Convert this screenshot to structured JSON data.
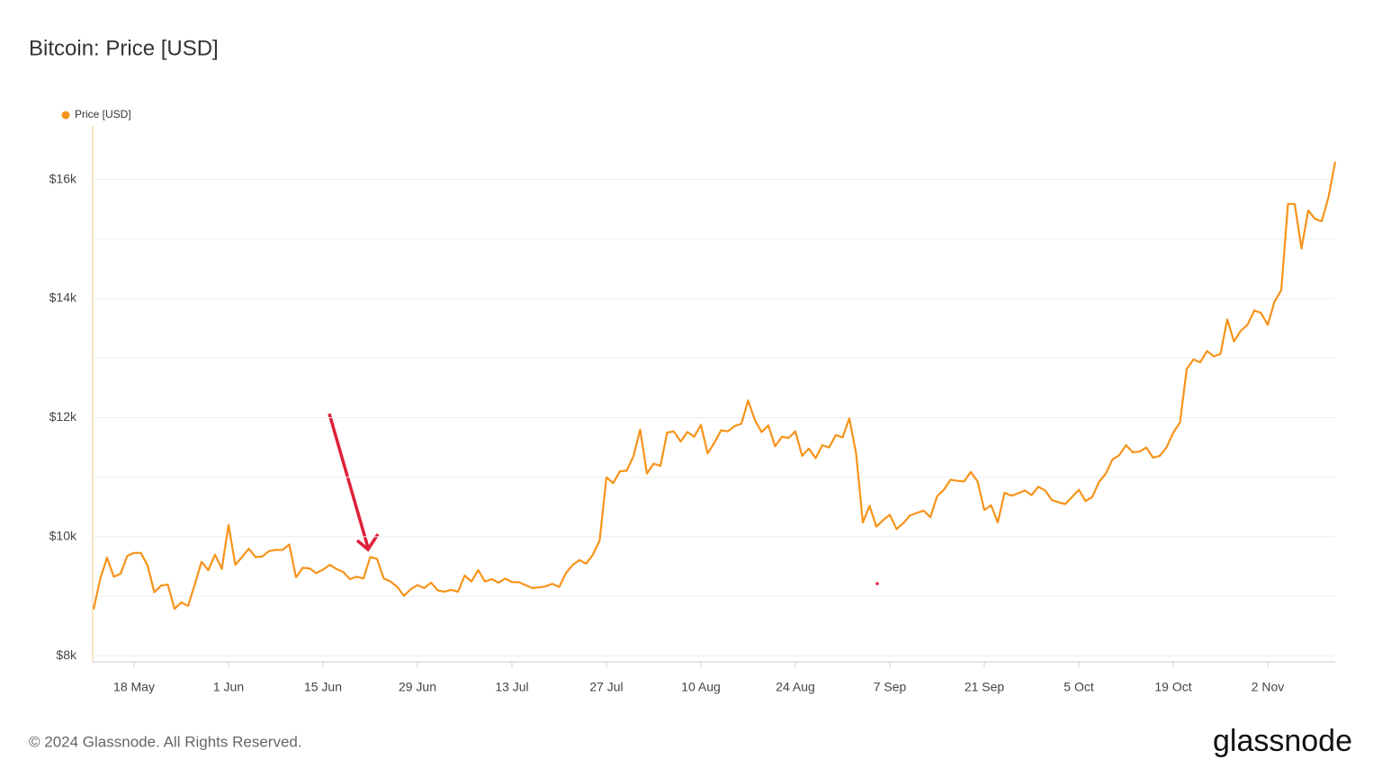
{
  "chart_data": {
    "type": "line",
    "title": "Bitcoin: Price [USD]",
    "categories": [
      null,
      null,
      null,
      null,
      null,
      null,
      "18 May",
      null,
      null,
      null,
      null,
      null,
      null,
      null,
      null,
      null,
      null,
      null,
      null,
      null,
      "1 Jun",
      null,
      null,
      null,
      null,
      null,
      null,
      null,
      null,
      null,
      null,
      null,
      null,
      null,
      "15 Jun",
      null,
      null,
      null,
      null,
      null,
      null,
      null,
      null,
      null,
      null,
      null,
      null,
      null,
      "29 Jun",
      null,
      null,
      null,
      null,
      null,
      null,
      null,
      null,
      null,
      null,
      null,
      null,
      null,
      "13 Jul",
      null,
      null,
      null,
      null,
      null,
      null,
      null,
      null,
      null,
      null,
      null,
      null,
      null,
      "27 Jul",
      null,
      null,
      null,
      null,
      null,
      null,
      null,
      null,
      null,
      null,
      null,
      null,
      null,
      "10 Aug",
      null,
      null,
      null,
      null,
      null,
      null,
      null,
      null,
      null,
      null,
      null,
      null,
      null,
      "24 Aug",
      null,
      null,
      null,
      null,
      null,
      null,
      null,
      null,
      null,
      null,
      null,
      null,
      null,
      "7 Sep",
      null,
      null,
      null,
      null,
      null,
      null,
      null,
      null,
      null,
      null,
      null,
      null,
      null,
      "21 Sep",
      null,
      null,
      null,
      null,
      null,
      null,
      null,
      null,
      null,
      null,
      null,
      null,
      null,
      "5 Oct",
      null,
      null,
      null,
      null,
      null,
      null,
      null,
      null,
      null,
      null,
      null,
      null,
      null,
      "19 Oct",
      null,
      null,
      null,
      null,
      null,
      null,
      null,
      null,
      null,
      null,
      null,
      null,
      null,
      "2 Nov",
      null,
      null,
      null,
      null,
      null,
      null,
      null,
      null,
      null,
      null
    ],
    "series": [
      {
        "name": "Price [USD]",
        "color": "#f7931a",
        "values": [
          8780,
          9300,
          9650,
          9330,
          9380,
          9680,
          9730,
          9730,
          9520,
          9070,
          9180,
          9200,
          8790,
          8900,
          8840,
          9200,
          9580,
          9440,
          9700,
          9460,
          10200,
          9530,
          9660,
          9800,
          9660,
          9670,
          9760,
          9780,
          9780,
          9870,
          9320,
          9480,
          9470,
          9390,
          9450,
          9530,
          9460,
          9410,
          9290,
          9330,
          9300,
          9660,
          9630,
          9300,
          9250,
          9160,
          9010,
          9120,
          9190,
          9140,
          9230,
          9100,
          9080,
          9110,
          9080,
          9350,
          9250,
          9440,
          9250,
          9290,
          9230,
          9300,
          9240,
          9240,
          9190,
          9140,
          9150,
          9170,
          9210,
          9160,
          9390,
          9530,
          9610,
          9550,
          9700,
          9940,
          11000,
          10900,
          11100,
          11110,
          11350,
          11800,
          11060,
          11230,
          11190,
          11750,
          11770,
          11600,
          11760,
          11680,
          11880,
          11400,
          11580,
          11790,
          11770,
          11860,
          11900,
          12290,
          11960,
          11760,
          11870,
          11520,
          11680,
          11660,
          11770,
          11360,
          11480,
          11320,
          11540,
          11500,
          11710,
          11670,
          11990,
          11400,
          10240,
          10520,
          10170,
          10280,
          10370,
          10130,
          10230,
          10360,
          10400,
          10440,
          10330,
          10680,
          10790,
          10960,
          10940,
          10930,
          11090,
          10930,
          10450,
          10530,
          10240,
          10740,
          10690,
          10730,
          10780,
          10700,
          10840,
          10780,
          10620,
          10580,
          10550,
          10670,
          10790,
          10600,
          10670,
          10920,
          11060,
          11300,
          11370,
          11540,
          11420,
          11430,
          11500,
          11330,
          11360,
          11500,
          11750,
          11920,
          12820,
          12980,
          12930,
          13120,
          13030,
          13070,
          13650,
          13280,
          13460,
          13560,
          13800,
          13760,
          13560,
          13950,
          14140,
          15590,
          15590,
          14840,
          15480,
          15340,
          15300,
          15700,
          16300
        ]
      }
    ],
    "ylim": [
      7900,
      16900
    ],
    "yticks": [
      {
        "value": 8000,
        "label": "$8k"
      },
      {
        "value": 10000,
        "label": "$10k"
      },
      {
        "value": 12000,
        "label": "$12k"
      },
      {
        "value": 14000,
        "label": "$14k"
      },
      {
        "value": 16000,
        "label": "$16k"
      }
    ],
    "minor_yticks": [
      9000,
      11000,
      13000,
      15000
    ],
    "grid": true,
    "legend": "top-left"
  },
  "footer": "© 2024 Glassnode. All Rights Reserved.",
  "brand": "glassnode"
}
